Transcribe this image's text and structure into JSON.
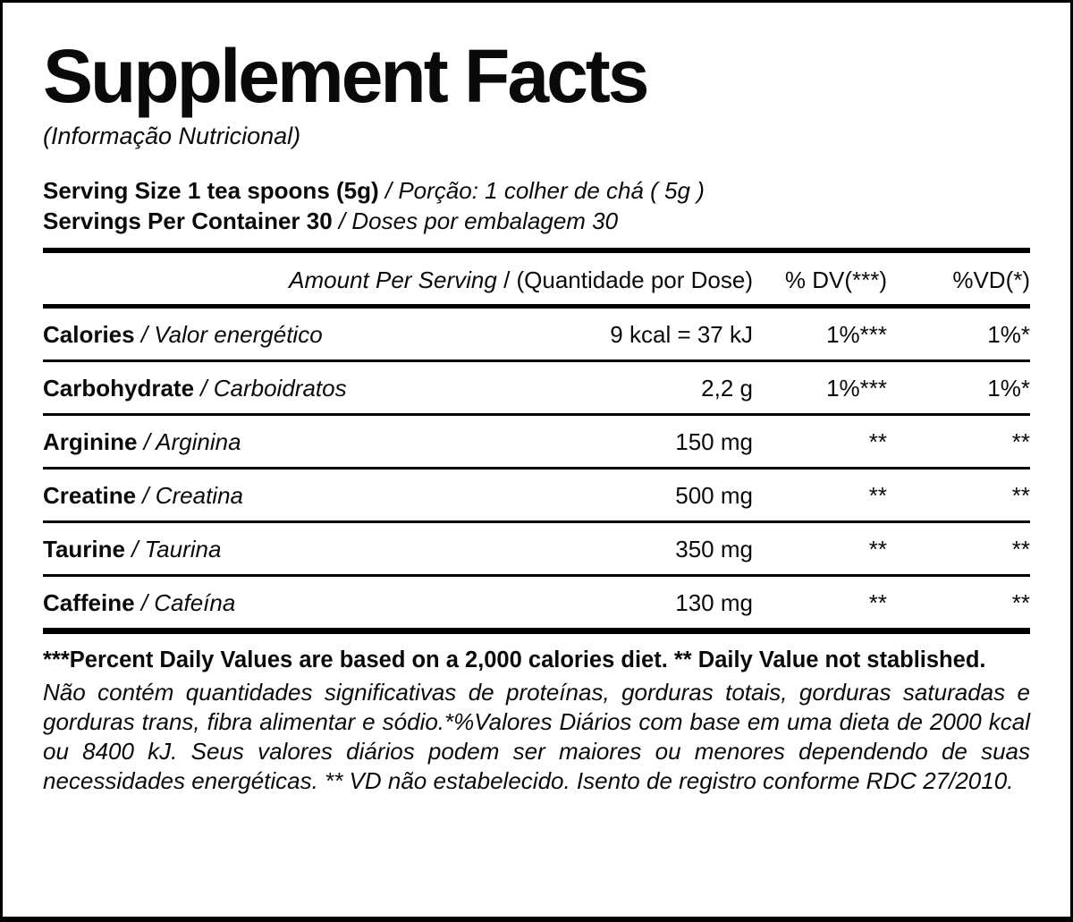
{
  "label": {
    "title": "Supplement Facts",
    "subtitle": "(Informação Nutricional)",
    "serving_size": {
      "en": "Serving Size 1 tea spoons (5g)",
      "pt": "/ Porção: 1 colher de chá ( 5g )"
    },
    "servings_per_container": {
      "en": "Servings Per Container 30",
      "pt": "/ Doses por embalagem 30"
    },
    "table": {
      "header": {
        "amount_en": "Amount Per Serving",
        "amount_pt": "/ (Quantidade por Dose)",
        "dv": "% DV(***)",
        "vd": "%VD(*)"
      },
      "rows": [
        {
          "name_en": "Calories",
          "name_pt": "/ Valor energético",
          "amount": "9 kcal = 37 kJ",
          "dv": "1%***",
          "vd": "1%*"
        },
        {
          "name_en": "Carbohydrate",
          "name_pt": "/ Carboidratos",
          "amount": "2,2 g",
          "dv": "1%***",
          "vd": "1%*"
        },
        {
          "name_en": "Arginine",
          "name_pt": "/ Arginina",
          "amount": "150 mg",
          "dv": "**",
          "vd": "**"
        },
        {
          "name_en": "Creatine",
          "name_pt": "/ Creatina",
          "amount": "500 mg",
          "dv": "**",
          "vd": "**"
        },
        {
          "name_en": "Taurine",
          "name_pt": "/ Taurina",
          "amount": "350 mg",
          "dv": "**",
          "vd": "**"
        },
        {
          "name_en": "Caffeine",
          "name_pt": "/ Cafeína",
          "amount": "130 mg",
          "dv": "**",
          "vd": "**"
        }
      ]
    },
    "footnote_bold": "***Percent Daily Values are based on a 2,000 calories diet. ** Daily Value not stablished.",
    "footnote_italic": "Não contém quantidades significativas de proteínas, gorduras totais, gorduras saturadas e gorduras trans, fibra alimentar e sódio.*%Valores Diários com base em uma dieta de 2000 kcal ou 8400 kJ. Seus valores diários podem ser maiores ou menores dependendo de suas necessidades energéticas. ** VD não estabelecido. Isento de registro conforme RDC 27/2010."
  },
  "colors": {
    "background": "#ffffff",
    "text": "#0a0a0a",
    "rule": "#000000"
  }
}
